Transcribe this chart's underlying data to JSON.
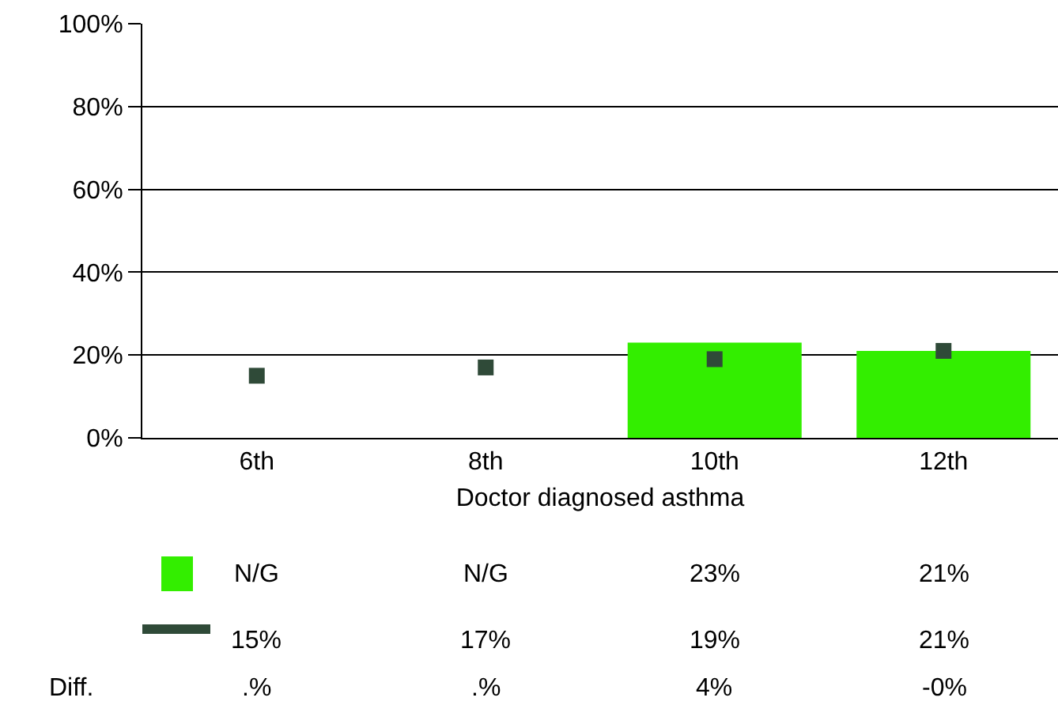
{
  "chart_data": {
    "type": "bar",
    "xlabel": "Doctor diagnosed asthma",
    "categories": [
      "6th",
      "8th",
      "10th",
      "12th"
    ],
    "series": [
      {
        "color": "#33ee00",
        "values": [
          null,
          null,
          23,
          21
        ],
        "value_labels": [
          "N/G",
          "N/G",
          "23%",
          "21%"
        ]
      },
      {
        "type": "scatter",
        "color": "#2f4a38",
        "values": [
          15,
          17,
          19,
          21
        ],
        "value_labels": [
          "15%",
          "17%",
          "19%",
          "21%"
        ]
      }
    ],
    "annotations": [
      "Diff.",
      ".%",
      ".%",
      "4%",
      "-0%"
    ],
    "ylim": [
      0,
      100
    ],
    "yticks": [
      {
        "value": 0,
        "label": "0%"
      },
      {
        "value": 20,
        "label": "20%"
      },
      {
        "value": 40,
        "label": "40%"
      },
      {
        "value": 60,
        "label": "60%"
      },
      {
        "value": 80,
        "label": "80%"
      },
      {
        "value": 100,
        "label": "100%"
      }
    ],
    "grid": "y",
    "legend": false
  }
}
